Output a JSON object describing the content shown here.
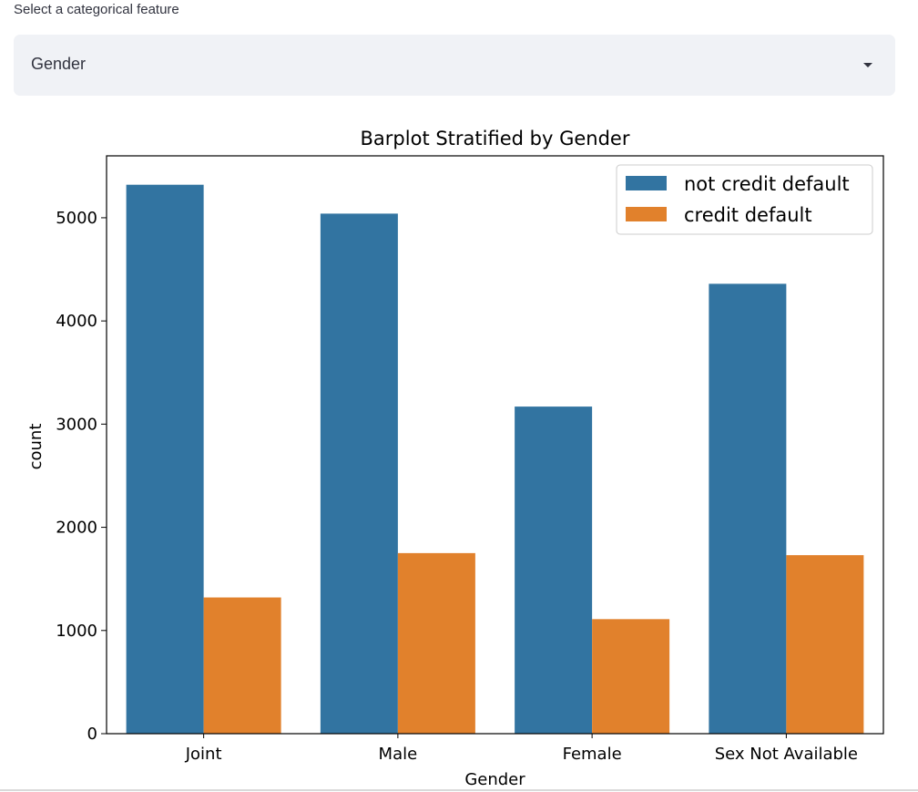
{
  "selector": {
    "label": "Select a categorical feature",
    "value": "Gender",
    "icon": "chevron-down-icon"
  },
  "chart_data": {
    "type": "bar",
    "title": "Barplot Stratified by Gender",
    "xlabel": "Gender",
    "ylabel": "count",
    "categories": [
      "Joint",
      "Male",
      "Female",
      "Sex Not Available"
    ],
    "series": [
      {
        "name": "not credit default",
        "color": "#3274a1",
        "values": [
          5320,
          5040,
          3170,
          4360
        ]
      },
      {
        "name": "credit default",
        "color": "#e1812c",
        "values": [
          1320,
          1750,
          1110,
          1730
        ]
      }
    ],
    "ylim": [
      0,
      5600
    ],
    "yticks": [
      0,
      1000,
      2000,
      3000,
      4000,
      5000
    ],
    "grid": false,
    "legend_position": "top-right"
  }
}
